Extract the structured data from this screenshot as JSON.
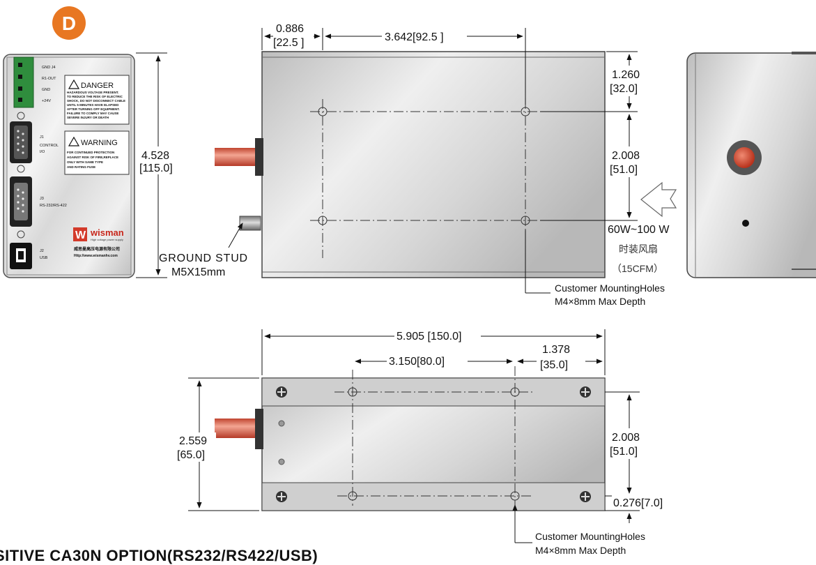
{
  "badge": {
    "letter": "D",
    "color": "#e87722"
  },
  "front_panel": {
    "connectors": [
      "GND J4",
      "R1-OUT",
      "GND",
      "+24V"
    ],
    "j1_label": "J1",
    "j1_sub": "CONTROL",
    "j1_sub2": "I/O",
    "j3_label": "J3",
    "j3_sub": "RS-232/RS-422",
    "j2_label": "J2",
    "j2_sub": "USB",
    "danger_title": "DANGER",
    "danger_lines": [
      "HAZARDOUS VOLTAGE PRESENT.",
      "TO REDUCE THE RISK OF ELECTRIC",
      "SHOCK, DO NOT DISCONNECT CABLE",
      "UNTIL 5 MINUTES HAVE ELAPSED",
      "AFTER TURNING OFF EQUIPMENT.",
      "FAILURE TO COMPLY MAY CAUSE",
      "SEVERE INJURY OR DEATH"
    ],
    "warning_title": "WARNING",
    "warning_lines": [
      "FOR CONTINUED PROTECTION",
      "AGAINST RISK OF FIRE,REPLACE",
      "ONLY WITH SAME TYPE",
      "AND RATING FUSE"
    ],
    "brand": "wisman",
    "brand_tagline": "High voltage power supply",
    "brand_cn": "威思曼高压电源有限公司",
    "brand_url": "Http://www.wismanhv.com",
    "height_in": "4.528",
    "height_mm": "[115.0]"
  },
  "side_view": {
    "dim_a_in": "0.886",
    "dim_a_mm": "[22.5 ]",
    "dim_b": "3.642[92.5 ]",
    "dim_c_in": "1.260",
    "dim_c_mm": "[32.0]",
    "dim_d_in": "2.008",
    "dim_d_mm": "[51.0]",
    "ground_stud": "GROUND STUD",
    "ground_stud_size": "M5X15mm",
    "fan_power": "60W~100 W",
    "fan_cn": "时装风扇",
    "fan_cfm": "（15CFM）",
    "holes_note": "Customer MountingHoles",
    "holes_depth": "M4×8mm Max Depth"
  },
  "bottom_view": {
    "dim_total": "5.905 [150.0]",
    "dim_span": "3.150[80.0]",
    "dim_edge_in": "1.378",
    "dim_edge_mm": "[35.0]",
    "dim_height_in": "2.559",
    "dim_height_mm": "[65.0]",
    "dim_hole_in": "2.008",
    "dim_hole_mm": "[51.0]",
    "dim_offset": "0.276[7.0]",
    "holes_note": "Customer MountingHoles",
    "holes_depth": "M4×8mm Max Depth"
  },
  "footer_title": "SITIVE CA30N OPTION(RS232/RS422/USB)"
}
